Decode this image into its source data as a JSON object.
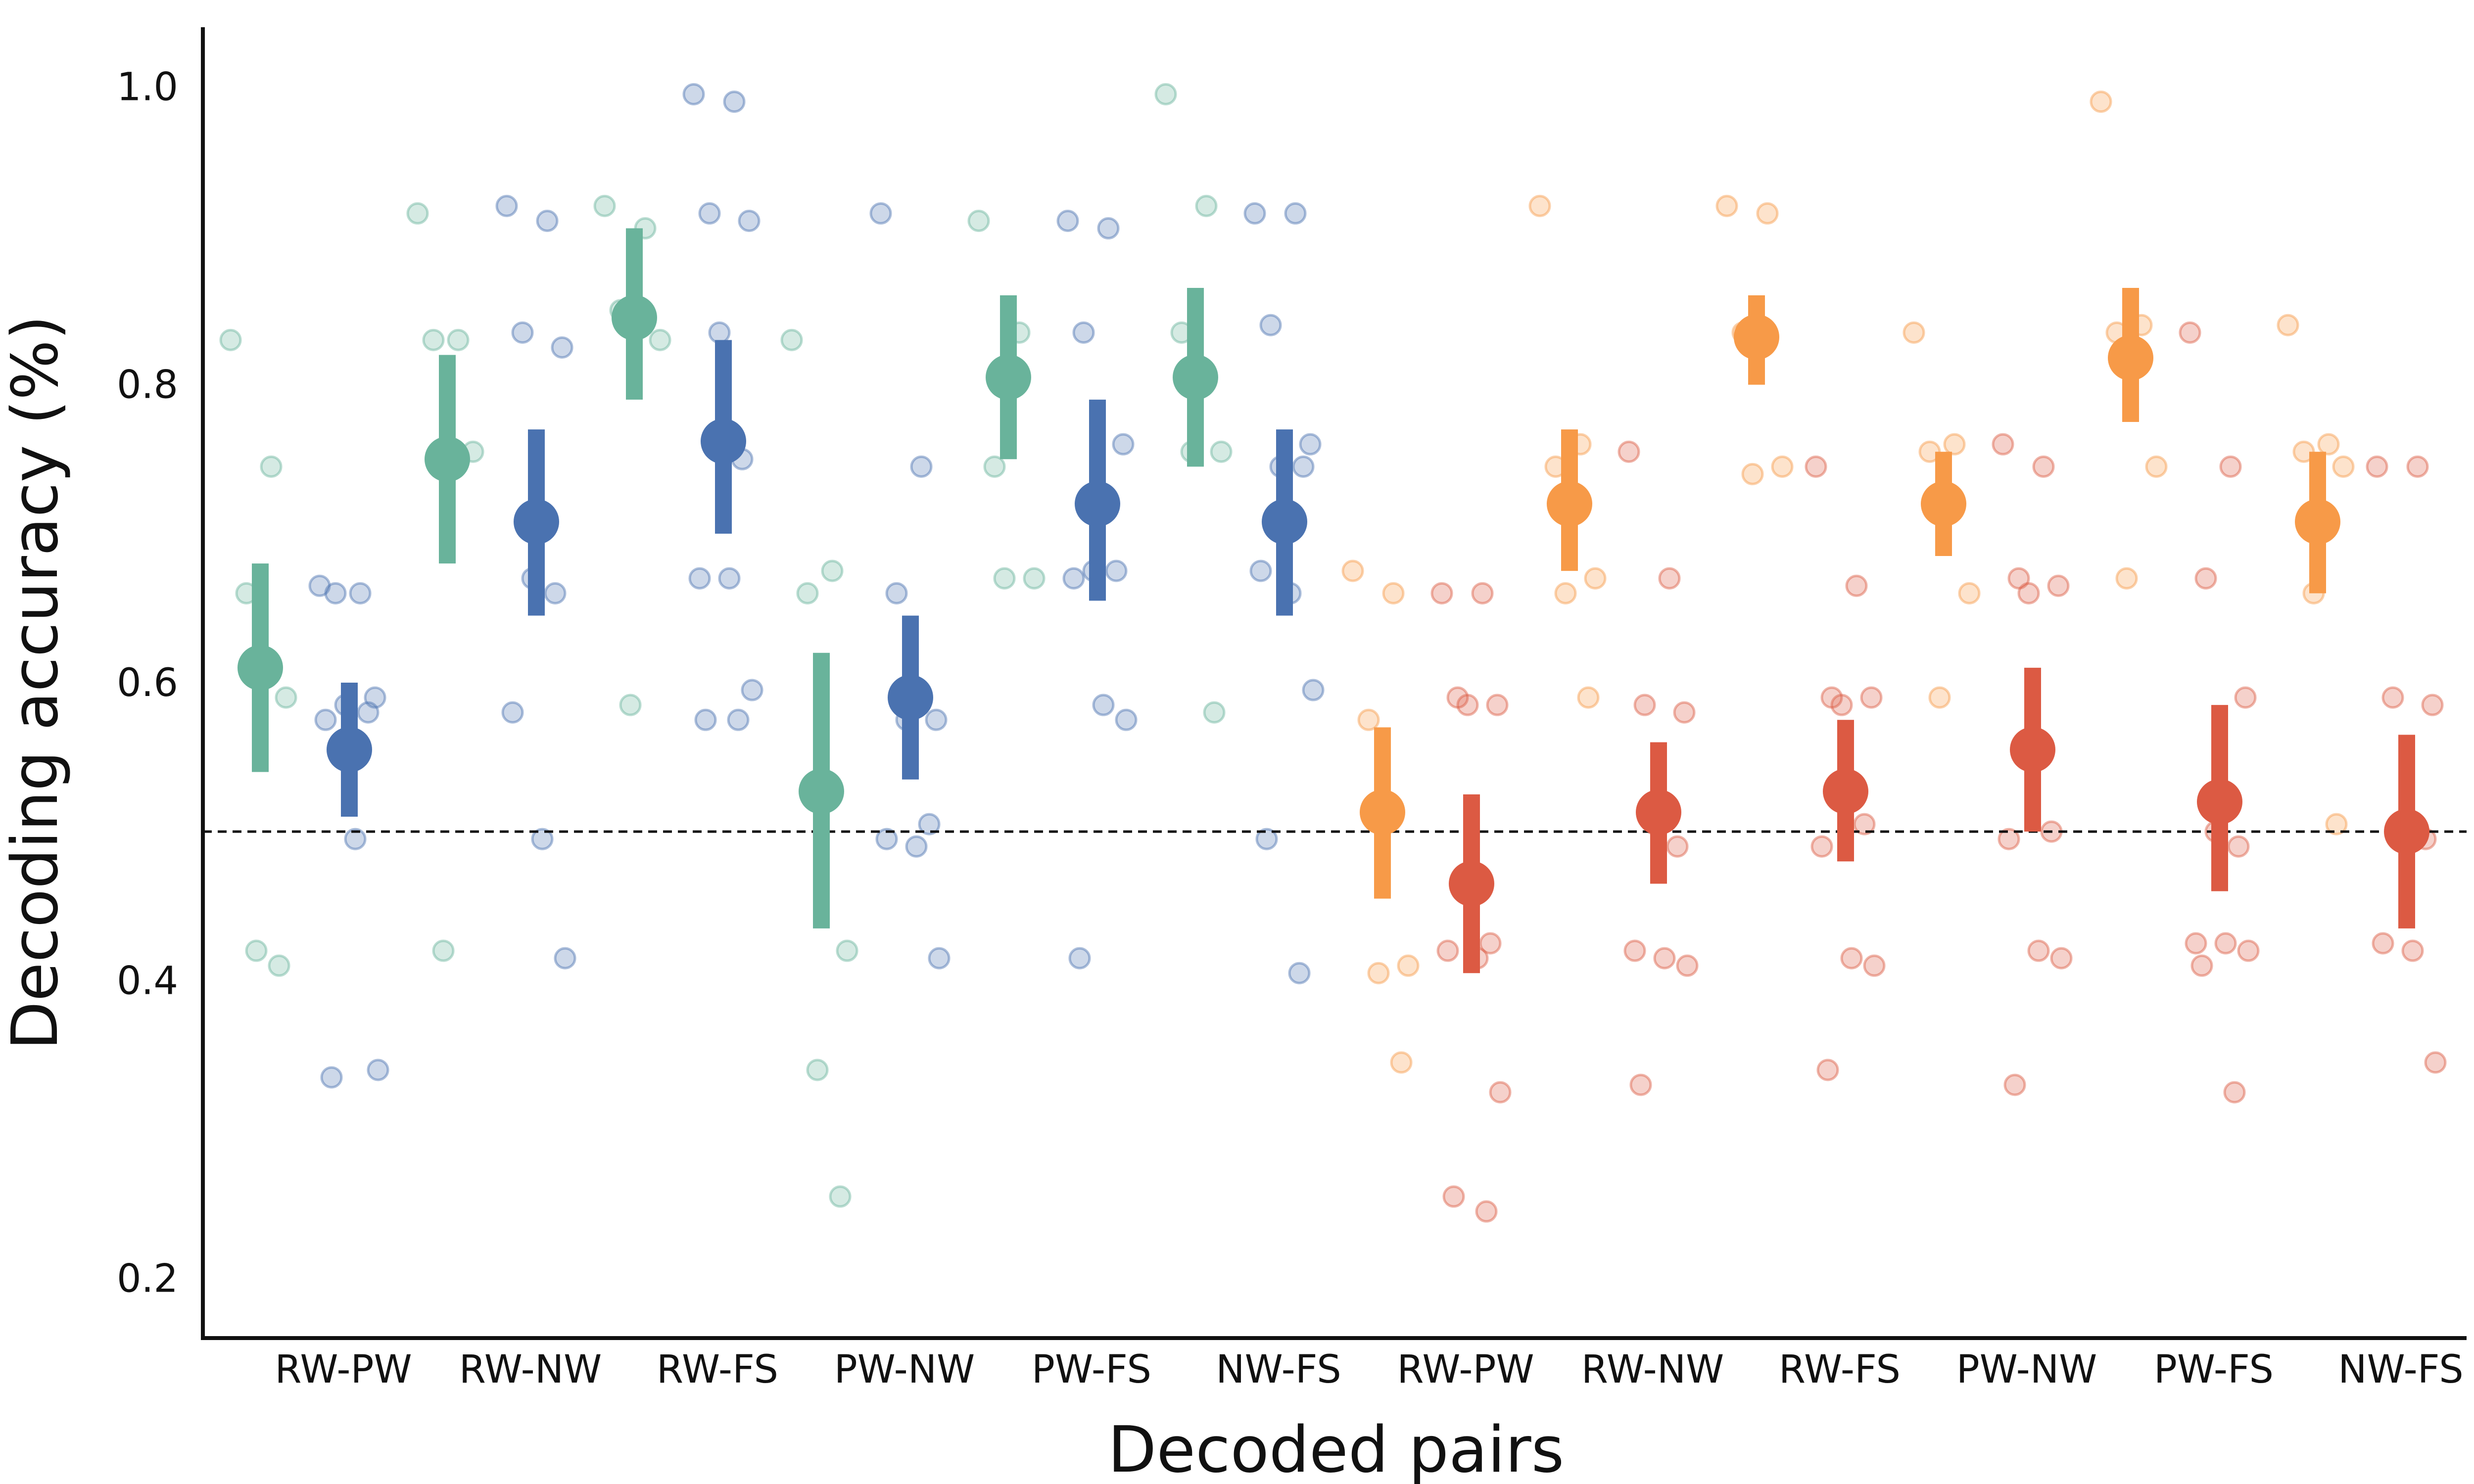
{
  "chart_data": {
    "type": "scatter",
    "title": "",
    "xlabel": "Decoded pairs",
    "ylabel": "Decoding accuracy (%)",
    "ylim": [
      0.16,
      1.04
    ],
    "yticks": [
      "0.2",
      "0.4",
      "0.6",
      "0.8",
      "1.0"
    ],
    "ytick_values": [
      0.2,
      0.4,
      0.6,
      0.8,
      1.0
    ],
    "chance_level": 0.5,
    "grid": false,
    "legend": "none",
    "categories": [
      "RW-PW",
      "RW-NW",
      "RW-FS",
      "PW-NW",
      "PW-FS",
      "NW-FS",
      "RW-PW",
      "RW-NW",
      "RW-FS",
      "PW-NW",
      "PW-FS",
      "NW-FS"
    ],
    "series": [
      {
        "color": "#69b39b",
        "points": [
          {
            "category_index": 0,
            "mean": 0.61,
            "ci": [
              0.54,
              0.68
            ],
            "individual": [
              0.83,
              0.745,
              0.66,
              0.59,
              0.42,
              0.41
            ]
          },
          {
            "category_index": 1,
            "mean": 0.75,
            "ci": [
              0.68,
              0.82
            ],
            "individual": [
              0.915,
              0.83,
              0.83,
              0.755,
              0.42
            ]
          },
          {
            "category_index": 2,
            "mean": 0.845,
            "ci": [
              0.79,
              0.905
            ],
            "individual": [
              0.92,
              0.905,
              0.85,
              0.83,
              0.585
            ]
          },
          {
            "category_index": 3,
            "mean": 0.527,
            "ci": [
              0.435,
              0.62
            ],
            "individual": [
              0.83,
              0.675,
              0.66,
              0.42,
              0.34,
              0.255
            ]
          },
          {
            "category_index": 4,
            "mean": 0.805,
            "ci": [
              0.75,
              0.86
            ],
            "individual": [
              0.91,
              0.835,
              0.745,
              0.67,
              0.67
            ]
          },
          {
            "category_index": 5,
            "mean": 0.805,
            "ci": [
              0.745,
              0.865
            ],
            "individual": [
              0.995,
              0.92,
              0.835,
              0.755,
              0.755,
              0.58
            ]
          }
        ]
      },
      {
        "color": "#4a72b0",
        "points": [
          {
            "category_index": 0,
            "mean": 0.555,
            "ci": [
              0.51,
              0.6
            ],
            "individual": [
              0.665,
              0.66,
              0.66,
              0.59,
              0.585,
              0.58,
              0.575,
              0.495,
              0.34,
              0.335
            ]
          },
          {
            "category_index": 1,
            "mean": 0.708,
            "ci": [
              0.645,
              0.77
            ],
            "individual": [
              0.92,
              0.91,
              0.835,
              0.825,
              0.67,
              0.66,
              0.58,
              0.495,
              0.415
            ]
          },
          {
            "category_index": 2,
            "mean": 0.762,
            "ci": [
              0.7,
              0.83
            ],
            "individual": [
              0.995,
              0.99,
              0.915,
              0.91,
              0.835,
              0.75,
              0.67,
              0.67,
              0.595,
              0.575,
              0.575
            ]
          },
          {
            "category_index": 3,
            "mean": 0.59,
            "ci": [
              0.535,
              0.645
            ],
            "individual": [
              0.915,
              0.745,
              0.66,
              0.575,
              0.575,
              0.505,
              0.495,
              0.49,
              0.415
            ]
          },
          {
            "category_index": 4,
            "mean": 0.72,
            "ci": [
              0.655,
              0.79
            ],
            "individual": [
              0.91,
              0.905,
              0.835,
              0.76,
              0.675,
              0.675,
              0.67,
              0.585,
              0.575,
              0.415
            ]
          },
          {
            "category_index": 5,
            "mean": 0.708,
            "ci": [
              0.645,
              0.77
            ],
            "individual": [
              0.915,
              0.915,
              0.84,
              0.76,
              0.745,
              0.745,
              0.675,
              0.66,
              0.595,
              0.495,
              0.405
            ]
          }
        ]
      },
      {
        "color": "#f79a48",
        "points": [
          {
            "category_index": 6,
            "mean": 0.513,
            "ci": [
              0.455,
              0.57
            ],
            "individual": [
              0.675,
              0.66,
              0.575,
              0.41,
              0.405,
              0.345
            ]
          },
          {
            "category_index": 7,
            "mean": 0.72,
            "ci": [
              0.675,
              0.77
            ],
            "individual": [
              0.92,
              0.76,
              0.745,
              0.67,
              0.66,
              0.59
            ]
          },
          {
            "category_index": 8,
            "mean": 0.832,
            "ci": [
              0.8,
              0.86
            ],
            "individual": [
              0.92,
              0.915,
              0.835,
              0.745,
              0.74
            ]
          },
          {
            "category_index": 9,
            "mean": 0.72,
            "ci": [
              0.685,
              0.755
            ],
            "individual": [
              0.835,
              0.76,
              0.755,
              0.66,
              0.59
            ]
          },
          {
            "category_index": 10,
            "mean": 0.818,
            "ci": [
              0.775,
              0.865
            ],
            "individual": [
              0.99,
              0.84,
              0.835,
              0.745,
              0.67
            ]
          },
          {
            "category_index": 11,
            "mean": 0.708,
            "ci": [
              0.66,
              0.755
            ],
            "individual": [
              0.84,
              0.76,
              0.755,
              0.745,
              0.66,
              0.505
            ]
          }
        ]
      },
      {
        "color": "#dc5a43",
        "points": [
          {
            "category_index": 6,
            "mean": 0.465,
            "ci": [
              0.405,
              0.525
            ],
            "individual": [
              0.66,
              0.66,
              0.59,
              0.585,
              0.585,
              0.425,
              0.42,
              0.415,
              0.325,
              0.255,
              0.245
            ]
          },
          {
            "category_index": 7,
            "mean": 0.513,
            "ci": [
              0.465,
              0.56
            ],
            "individual": [
              0.755,
              0.67,
              0.585,
              0.58,
              0.505,
              0.49,
              0.42,
              0.415,
              0.41,
              0.33
            ]
          },
          {
            "category_index": 8,
            "mean": 0.527,
            "ci": [
              0.48,
              0.575
            ],
            "individual": [
              0.745,
              0.665,
              0.59,
              0.59,
              0.585,
              0.505,
              0.49,
              0.415,
              0.41,
              0.34
            ]
          },
          {
            "category_index": 9,
            "mean": 0.555,
            "ci": [
              0.5,
              0.61
            ],
            "individual": [
              0.76,
              0.745,
              0.67,
              0.665,
              0.66,
              0.5,
              0.495,
              0.42,
              0.415,
              0.33
            ]
          },
          {
            "category_index": 10,
            "mean": 0.52,
            "ci": [
              0.46,
              0.585
            ],
            "individual": [
              0.835,
              0.745,
              0.67,
              0.59,
              0.5,
              0.49,
              0.425,
              0.425,
              0.42,
              0.41,
              0.325
            ]
          },
          {
            "category_index": 11,
            "mean": 0.5,
            "ci": [
              0.435,
              0.565
            ],
            "individual": [
              0.745,
              0.745,
              0.59,
              0.585,
              0.5,
              0.495,
              0.425,
              0.42,
              0.345
            ]
          }
        ]
      }
    ]
  }
}
